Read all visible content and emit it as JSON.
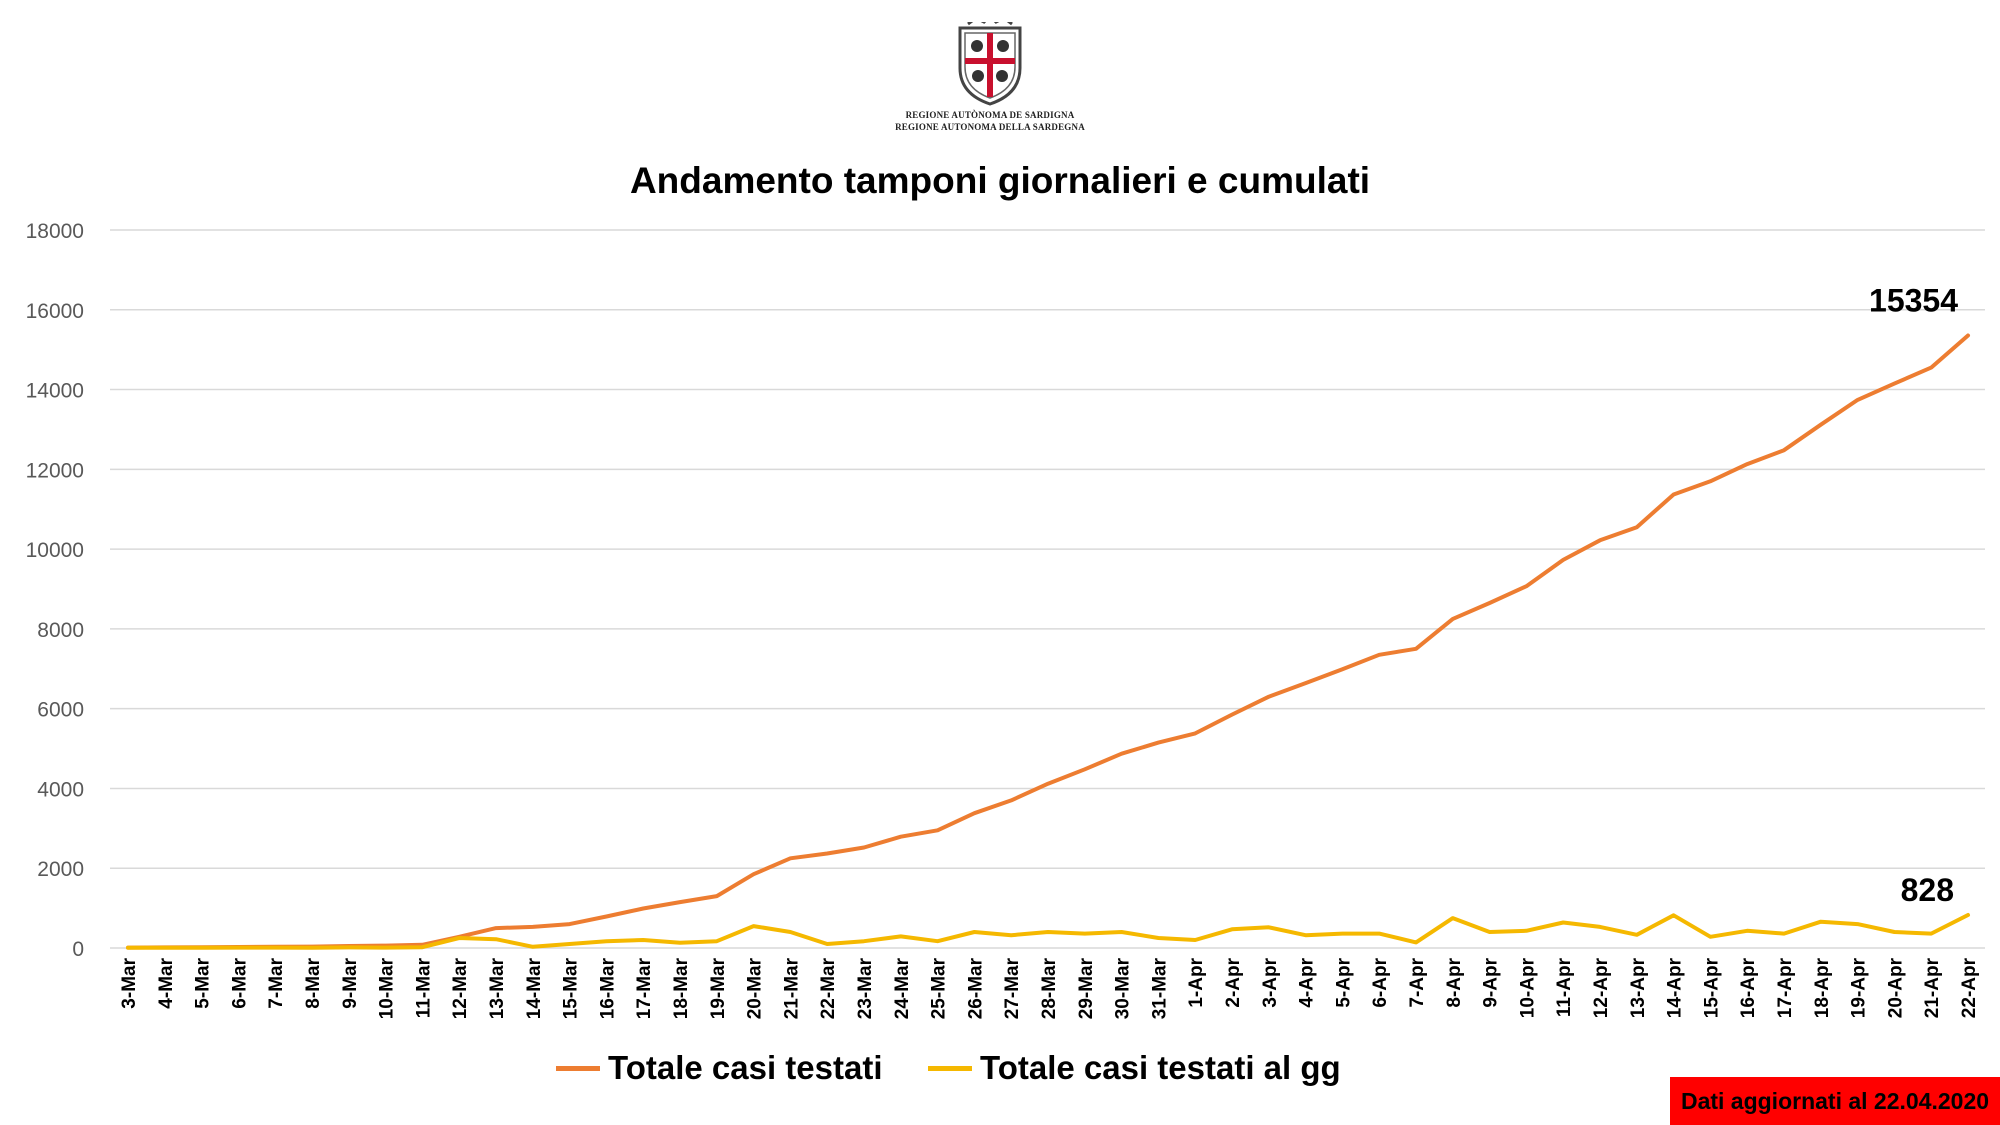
{
  "header": {
    "logo_line1": "REGIONE AUTÒNOMA DE SARDIGNA",
    "logo_line2": "REGIONE AUTONOMA DELLA SARDEGNA"
  },
  "footer": {
    "updated_label": "Dati aggiornati al 22.04.2020"
  },
  "colors": {
    "total": "#ed7d31",
    "daily": "#f5b800",
    "grid": "#d9d9d9",
    "badge": "#ff0000"
  },
  "chart_data": {
    "type": "line",
    "title": "Andamento tamponi giornalieri e cumulati",
    "xlabel": "",
    "ylabel": "",
    "ylim": [
      0,
      18000
    ],
    "yticks": [
      0,
      2000,
      4000,
      6000,
      8000,
      10000,
      12000,
      14000,
      16000,
      18000
    ],
    "grid": true,
    "legend_position": "bottom",
    "categories": [
      "3-Mar",
      "4-Mar",
      "5-Mar",
      "6-Mar",
      "7-Mar",
      "8-Mar",
      "9-Mar",
      "10-Mar",
      "11-Mar",
      "12-Mar",
      "13-Mar",
      "14-Mar",
      "15-Mar",
      "16-Mar",
      "17-Mar",
      "18-Mar",
      "19-Mar",
      "20-Mar",
      "21-Mar",
      "22-Mar",
      "23-Mar",
      "24-Mar",
      "25-Mar",
      "26-Mar",
      "27-Mar",
      "28-Mar",
      "29-Mar",
      "30-Mar",
      "31-Mar",
      "1-Apr",
      "2-Apr",
      "3-Apr",
      "4-Apr",
      "5-Apr",
      "6-Apr",
      "7-Apr",
      "8-Apr",
      "9-Apr",
      "10-Apr",
      "11-Apr",
      "12-Apr",
      "13-Apr",
      "14-Apr",
      "15-Apr",
      "16-Apr",
      "17-Apr",
      "18-Apr",
      "19-Apr",
      "20-Apr",
      "21-Apr",
      "22-Apr"
    ],
    "series": [
      {
        "name": "Totale casi testati",
        "values": [
          10,
          15,
          20,
          25,
          30,
          35,
          50,
          60,
          80,
          280,
          500,
          530,
          600,
          790,
          990,
          1150,
          1300,
          1850,
          2250,
          2370,
          2520,
          2790,
          2950,
          3380,
          3700,
          4120,
          4480,
          4870,
          5150,
          5380,
          5850,
          6300,
          6640,
          6990,
          7350,
          7500,
          8250,
          8650,
          9070,
          9730,
          10220,
          10550,
          11370,
          11700,
          12130,
          12480,
          13120,
          13740,
          14150,
          14550,
          15354
        ],
        "end_label": "15354"
      },
      {
        "name": "Totale casi testati al gg",
        "values": [
          5,
          5,
          5,
          10,
          10,
          5,
          15,
          10,
          20,
          250,
          220,
          30,
          100,
          170,
          200,
          130,
          170,
          550,
          400,
          100,
          170,
          290,
          170,
          400,
          320,
          400,
          360,
          400,
          250,
          200,
          470,
          520,
          320,
          360,
          360,
          140,
          750,
          400,
          430,
          640,
          530,
          330,
          820,
          280,
          430,
          360,
          660,
          600,
          400,
          360,
          828
        ],
        "end_label": "828"
      }
    ]
  }
}
